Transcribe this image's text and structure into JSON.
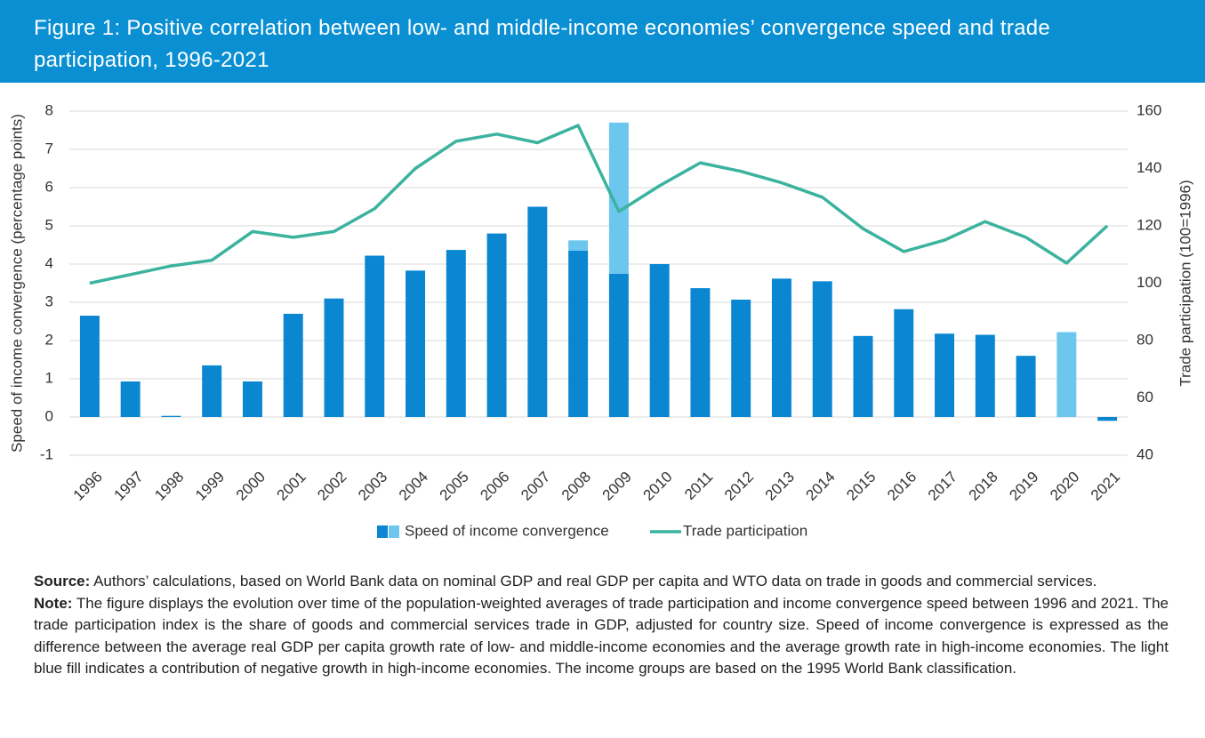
{
  "chart_data": {
    "type": "bar-line",
    "title": "Figure 1: Positive correlation between low- and middle-income economies’ convergence speed and trade participation, 1996-2021",
    "ylabel": "Speed of income convergence (percentage points)",
    "y2label": "Trade participation (100=1996)",
    "categories": [
      "1996",
      "1997",
      "1998",
      "1999",
      "2000",
      "2001",
      "2002",
      "2003",
      "2004",
      "2005",
      "2006",
      "2007",
      "2008",
      "2009",
      "2010",
      "2011",
      "2012",
      "2013",
      "2014",
      "2015",
      "2016",
      "2017",
      "2018",
      "2019",
      "2020",
      "2021"
    ],
    "series": [
      {
        "name": "Speed of income convergence",
        "color": "#0a87d0",
        "type": "bar",
        "values": [
          2.65,
          0.93,
          0.03,
          1.35,
          0.93,
          2.7,
          3.1,
          4.22,
          3.83,
          4.37,
          4.8,
          5.5,
          4.35,
          3.75,
          4.0,
          3.37,
          3.07,
          3.62,
          3.55,
          2.12,
          2.82,
          2.18,
          2.15,
          1.6,
          null,
          -0.1
        ]
      },
      {
        "color": "#6cc6ee",
        "type": "bar",
        "values": [
          null,
          null,
          null,
          null,
          null,
          null,
          null,
          null,
          null,
          null,
          null,
          null,
          0.27,
          3.95,
          null,
          null,
          null,
          null,
          null,
          null,
          null,
          null,
          null,
          null,
          2.22,
          null
        ]
      },
      {
        "name": "Trade participation",
        "color": "#3bb39e",
        "type": "line",
        "axis": "y2",
        "values": [
          100,
          103,
          106,
          108,
          118,
          116,
          118,
          126,
          140,
          149.5,
          152,
          149,
          155,
          125,
          134,
          142,
          139,
          135,
          130,
          119,
          111,
          115,
          121.5,
          116,
          107,
          120
        ]
      }
    ],
    "ylim": [
      -1,
      8
    ],
    "yticks": [
      -1,
      0,
      1,
      2,
      3,
      4,
      5,
      6,
      7,
      8
    ],
    "y2lim": [
      40,
      160
    ],
    "y2ticks": [
      40,
      60,
      80,
      100,
      120,
      140,
      160
    ],
    "grid": true,
    "legend": "bottom"
  },
  "notes": {
    "source_label": "Source:",
    "source": "Authors’ calculations, based on World Bank data on nominal GDP and real GDP per capita and WTO data on trade in goods and commercial services.",
    "note_label": "Note:",
    "note": "The figure displays the evolution over time of the population-weighted averages of trade participation and income convergence speed between 1996 and 2021. The trade participation index is the share of goods and commercial services trade in GDP, adjusted for country size. Speed of income convergence is expressed as the difference between the average real GDP per capita growth rate of low- and middle-income economies and the average growth rate in high-income economies. The light blue fill indicates a contribution of negative growth in high-income economies. The income groups are based on the 1995 World Bank classification."
  }
}
